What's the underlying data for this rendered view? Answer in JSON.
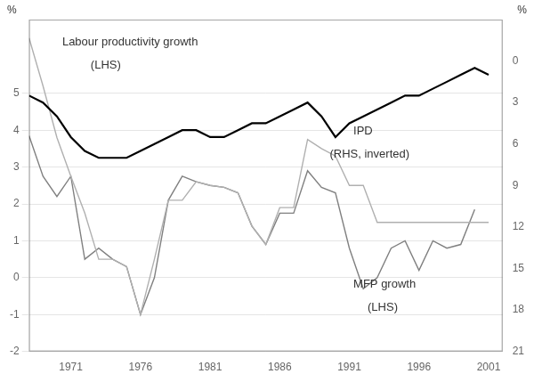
{
  "chart_data": {
    "type": "line",
    "x": [
      1968,
      1969,
      1970,
      1971,
      1972,
      1973,
      1974,
      1975,
      1976,
      1977,
      1978,
      1979,
      1980,
      1981,
      1982,
      1983,
      1984,
      1985,
      1986,
      1987,
      1988,
      1989,
      1990,
      1991,
      1992,
      1993,
      1994,
      1995,
      1996,
      1997,
      1998,
      1999,
      2000,
      2001
    ],
    "series": [
      {
        "color": "#b0b0b0",
        "values": [
          6.5,
          5.2,
          3.8,
          2.75,
          1.75,
          0.5,
          0.5,
          0.3,
          -1.0,
          0.5,
          2.1,
          2.1,
          2.6,
          2.5,
          2.45,
          2.3,
          1.4,
          0.9,
          1.9,
          1.9,
          3.75,
          3.5,
          3.3,
          2.5,
          2.5,
          1.5,
          1.5,
          1.5,
          1.5,
          1.5,
          1.5,
          1.5,
          1.5,
          1.5
        ]
      },
      {
        "color": "#808080",
        "values": [
          3.85,
          2.75,
          2.2,
          2.75,
          0.5,
          0.8,
          0.5,
          0.3,
          -1.0,
          0.0,
          2.1,
          2.75,
          2.6,
          2.5,
          2.45,
          2.3,
          1.4,
          0.9,
          1.75,
          1.75,
          2.9,
          2.45,
          2.3,
          0.8,
          -0.3,
          0.0,
          0.8,
          1.0,
          0.2,
          1.0,
          0.8,
          0.9,
          1.85,
          null
        ]
      },
      {
        "color": "#000000",
        "axis": "y2",
        "values": [
          2.5,
          3.0,
          4.0,
          5.5,
          6.5,
          7.0,
          7.0,
          7.0,
          6.5,
          6.0,
          5.5,
          5.0,
          5.0,
          5.5,
          5.5,
          5.0,
          4.5,
          4.5,
          4.0,
          3.5,
          3.0,
          4.0,
          5.5,
          4.5,
          4.0,
          3.5,
          3.0,
          2.5,
          2.5,
          2.0,
          1.5,
          1.0,
          0.5,
          1.0
        ]
      }
    ],
    "xlim": [
      1968,
      2002
    ],
    "xticks": [
      1971,
      1976,
      1981,
      1986,
      1991,
      1996,
      2001
    ],
    "ylim": [
      -2,
      7
    ],
    "yticks": [
      -2,
      -1,
      0,
      1,
      2,
      3,
      4,
      5
    ],
    "y2lim": [
      21,
      -3
    ],
    "y2ticks": [
      0,
      3,
      6,
      9,
      12,
      15,
      18,
      21
    ],
    "ylabel": "%",
    "y2label": "%",
    "annotations": [
      "Labour productivity growth",
      "(LHS)",
      "IPD",
      "(RHS, inverted)",
      "MFP growth",
      "(LHS)"
    ],
    "grid": true
  }
}
